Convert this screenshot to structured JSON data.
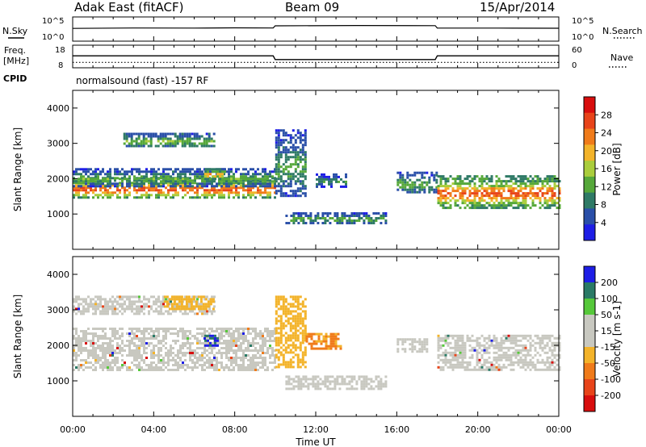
{
  "header": {
    "radar": "Adak East (fitACF)",
    "beam": "Beam 09",
    "date": "15/Apr/2014"
  },
  "status_panels": {
    "nsky_label": "N.Sky",
    "nsearch_label": "N.Search",
    "noise_ticks": [
      "10^5",
      "10^0"
    ],
    "freq_label": "Freq.",
    "freq_unit": "[MHz]",
    "freq_ticks": [
      "18",
      "8"
    ],
    "nave_label": "Nave",
    "nave_ticks": [
      "60",
      "0"
    ],
    "cpid_label": "CPID",
    "cpid_text": "normalsound (fast) -157 RF"
  },
  "colors": {
    "power_scale": [
      "#1e1ee6",
      "#2a4fa8",
      "#2f7a66",
      "#56a83a",
      "#aacd3c",
      "#f3b32a",
      "#f07b1a",
      "#e8441a",
      "#d80e0e"
    ],
    "velocity_scale": [
      "#d80e0e",
      "#e8441a",
      "#f07b1a",
      "#f3b32a",
      "#c8c8c0",
      "#c8c8c0",
      "#56c83a",
      "#2a7a66",
      "#1e1ee6"
    ],
    "ground_scatter": "#c8c8c0"
  },
  "chart_data": [
    {
      "type": "line",
      "title": "N.Sky",
      "x_range_hours": [
        0,
        24
      ],
      "y_scale": "log",
      "ylim": [
        "10^0",
        "10^5"
      ],
      "series": [
        {
          "name": "N.Sky",
          "x": [
            0,
            3,
            6,
            8,
            9.9,
            10,
            14,
            17.9,
            18,
            21,
            24
          ],
          "values": [
            1000,
            1300,
            1200,
            1400,
            1300,
            5000,
            6000,
            5500,
            1200,
            1200,
            1100
          ]
        }
      ]
    },
    {
      "type": "line",
      "title": "Freq.",
      "x_range_hours": [
        0,
        24
      ],
      "series": [
        {
          "name": "Freq. [MHz]",
          "x": [
            0,
            9.9,
            10,
            17.9,
            18,
            24
          ],
          "values": [
            14,
            14,
            12,
            12,
            14,
            14
          ]
        },
        {
          "name": "Nave",
          "x": [
            0,
            24
          ],
          "values": [
            15,
            15
          ]
        }
      ]
    },
    {
      "type": "heatmap",
      "panel": "power",
      "ylabel": "Slant Range [km]",
      "yticks": [
        "1000",
        "2000",
        "3000",
        "4000"
      ],
      "colorbar_label": "Power [dB]",
      "colorbar_ticks": [
        "28",
        "24",
        "20",
        "16",
        "12",
        "8",
        "4"
      ],
      "colorbar_range": [
        0,
        30
      ],
      "features": [
        {
          "t": [
            0,
            10
          ],
          "range_km": [
            1450,
            2050
          ],
          "power_db": 20
        },
        {
          "t": [
            0,
            10
          ],
          "range_km": [
            1800,
            2300
          ],
          "power_db": 10
        },
        {
          "t": [
            2.5,
            7
          ],
          "range_km": [
            2900,
            3300
          ],
          "power_db": 11
        },
        {
          "t": [
            6.5,
            7.5
          ],
          "range_km": [
            2000,
            2300
          ],
          "power_db": 17
        },
        {
          "t": [
            10,
            11.5
          ],
          "range_km": [
            1500,
            3400
          ],
          "power_db": 9
        },
        {
          "t": [
            10.5,
            15.5
          ],
          "range_km": [
            750,
            1050
          ],
          "power_db": 10
        },
        {
          "t": [
            12,
            13.5
          ],
          "range_km": [
            1800,
            2150
          ],
          "power_db": 8
        },
        {
          "t": [
            16,
            18
          ],
          "range_km": [
            1600,
            2200
          ],
          "power_db": 10
        },
        {
          "t": [
            18,
            24
          ],
          "range_km": [
            1200,
            2100
          ],
          "power_db": 20
        }
      ]
    },
    {
      "type": "heatmap",
      "panel": "velocity",
      "ylabel": "Slant Range [km]",
      "yticks": [
        "1000",
        "2000",
        "3000",
        "4000"
      ],
      "colorbar_label": "Velocity [m s-1]",
      "colorbar_ticks": [
        "200",
        "100",
        "50",
        "15",
        "-15",
        "-50",
        "-100",
        "-200"
      ],
      "colorbar_range": [
        -250,
        250
      ],
      "features": [
        {
          "t": [
            0,
            10
          ],
          "range_km": [
            1300,
            2500
          ],
          "velocity_ms": 0,
          "ground_scatter": true
        },
        {
          "t": [
            0,
            7
          ],
          "range_km": [
            2900,
            3400
          ],
          "velocity_ms": 0,
          "ground_scatter": true
        },
        {
          "t": [
            4.5,
            7
          ],
          "range_km": [
            3000,
            3400
          ],
          "velocity_ms": -50
        },
        {
          "t": [
            6.5,
            7.1
          ],
          "range_km": [
            2000,
            2300
          ],
          "velocity_ms": 200
        },
        {
          "t": [
            10,
            11.5
          ],
          "range_km": [
            1400,
            3400
          ],
          "velocity_ms": -60
        },
        {
          "t": [
            11.5,
            13.2
          ],
          "range_km": [
            1900,
            2350
          ],
          "velocity_ms": -90
        },
        {
          "t": [
            10.5,
            15.5
          ],
          "range_km": [
            750,
            1150
          ],
          "velocity_ms": 40
        },
        {
          "t": [
            16,
            17.5
          ],
          "range_km": [
            1800,
            2200
          ],
          "velocity_ms": 30
        },
        {
          "t": [
            18,
            24
          ],
          "range_km": [
            1300,
            2300
          ],
          "velocity_ms": 0,
          "ground_scatter": true
        }
      ]
    }
  ],
  "x_axis": {
    "label": "Time UT",
    "ticks": [
      "00:00",
      "04:00",
      "08:00",
      "12:00",
      "16:00",
      "20:00",
      "00:00"
    ]
  }
}
